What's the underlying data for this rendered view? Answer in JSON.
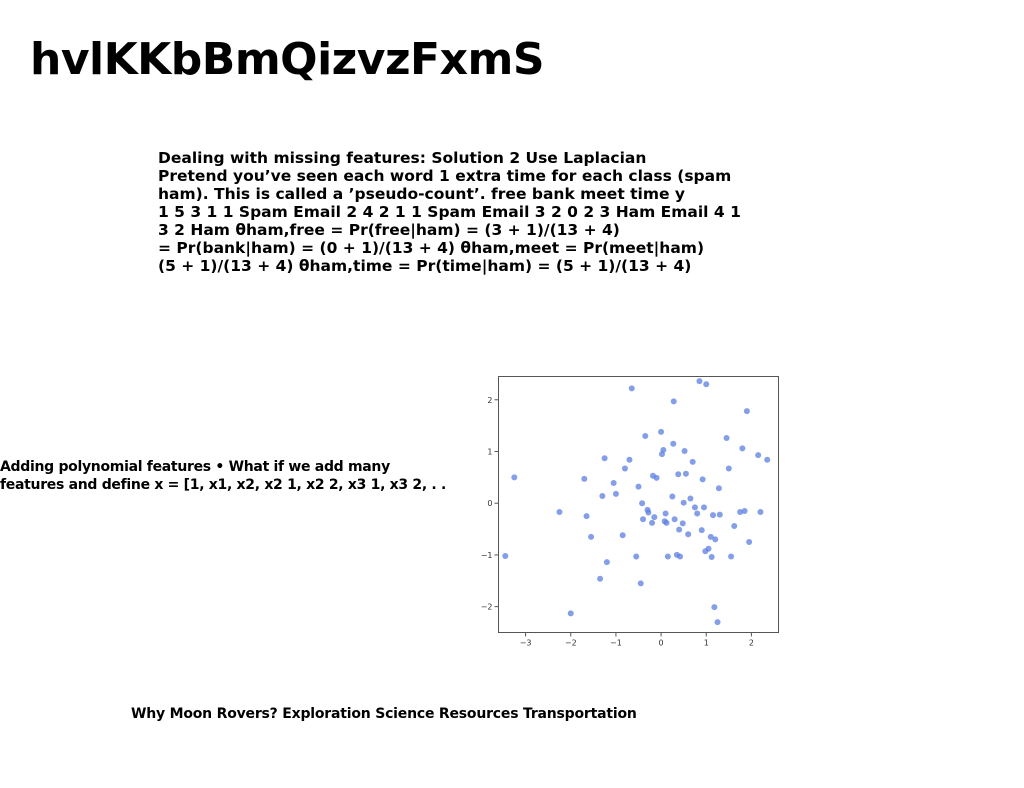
{
  "header": {
    "title": "hvlKKbBmQizvzFxmS"
  },
  "laplacian": {
    "lines": [
      "Dealing with missing features: Solution 2 Use Laplacian",
      "Pretend you’ve seen each word 1 extra time for each class (spam",
      "ham). This is called a ’pseudo-count’. free bank meet time y",
      "1 5 3 1 1 Spam Email 2 4 2 1 1 Spam Email 3 2 0 2 3 Ham Email 4 1",
      "3 2 Ham θham,free = Pr(free|ham) = (3 + 1)/(13 + 4)",
      "= Pr(bank|ham) = (0 + 1)/(13 + 4) θham,meet = Pr(meet|ham)",
      "(5 + 1)/(13 + 4) θham,time = Pr(time|ham) = (5 + 1)/(13 + 4)"
    ]
  },
  "polynomial": {
    "lines": [
      "Adding polynomial features • What if we add many",
      "features and define x = [1, x1, x2, x2 1, x2 2, x3 1, x3 2, . ."
    ]
  },
  "moon": {
    "text": "Why Moon Rovers? Exploration Science Resources Transportation"
  },
  "chart_data": {
    "type": "scatter",
    "title": "",
    "xlabel": "",
    "ylabel": "",
    "xlim": [
      -3.6,
      2.6
    ],
    "ylim": [
      -2.5,
      2.45
    ],
    "xticks": [
      -3,
      -2,
      -1,
      0,
      1,
      2
    ],
    "yticks": [
      -2,
      -1,
      0,
      1,
      2
    ],
    "xtick_labels": [
      "−3",
      "−2",
      "−1",
      "0",
      "1",
      "2"
    ],
    "ytick_labels": [
      "−2",
      "−1",
      "0",
      "1",
      "2"
    ],
    "grid": false,
    "point_color": "#5b7fe0",
    "points": [
      [
        -3.45,
        -1.02
      ],
      [
        -3.25,
        0.5
      ],
      [
        -2.25,
        -0.17
      ],
      [
        -2.0,
        -2.13
      ],
      [
        -1.7,
        0.47
      ],
      [
        -1.65,
        -0.25
      ],
      [
        -1.55,
        -0.65
      ],
      [
        -1.35,
        -1.46
      ],
      [
        -1.3,
        0.14
      ],
      [
        -1.25,
        0.87
      ],
      [
        -1.2,
        -1.14
      ],
      [
        -1.05,
        0.39
      ],
      [
        -1.0,
        0.18
      ],
      [
        -0.85,
        -0.62
      ],
      [
        -0.8,
        0.67
      ],
      [
        -0.7,
        0.84
      ],
      [
        -0.65,
        2.22
      ],
      [
        -0.55,
        -1.03
      ],
      [
        -0.5,
        0.32
      ],
      [
        -0.45,
        -1.55
      ],
      [
        -0.42,
        0.0
      ],
      [
        -0.4,
        -0.31
      ],
      [
        -0.35,
        1.3
      ],
      [
        -0.3,
        -0.13
      ],
      [
        -0.28,
        -0.18
      ],
      [
        -0.2,
        -0.38
      ],
      [
        -0.18,
        0.53
      ],
      [
        -0.15,
        -0.27
      ],
      [
        -0.1,
        0.49
      ],
      [
        0.0,
        1.38
      ],
      [
        0.02,
        0.95
      ],
      [
        0.05,
        1.03
      ],
      [
        0.08,
        -0.35
      ],
      [
        0.1,
        -0.2
      ],
      [
        0.12,
        -0.38
      ],
      [
        0.15,
        -1.03
      ],
      [
        0.25,
        0.13
      ],
      [
        0.27,
        1.15
      ],
      [
        0.28,
        1.97
      ],
      [
        0.3,
        -0.31
      ],
      [
        0.35,
        -1.0
      ],
      [
        0.38,
        0.56
      ],
      [
        0.4,
        -0.51
      ],
      [
        0.42,
        -1.03
      ],
      [
        0.48,
        -0.39
      ],
      [
        0.5,
        0.01
      ],
      [
        0.52,
        1.01
      ],
      [
        0.55,
        0.57
      ],
      [
        0.6,
        -0.6
      ],
      [
        0.65,
        0.09
      ],
      [
        0.7,
        0.8
      ],
      [
        0.75,
        -0.08
      ],
      [
        0.8,
        -0.2
      ],
      [
        0.85,
        2.36
      ],
      [
        0.9,
        -0.52
      ],
      [
        0.92,
        0.46
      ],
      [
        0.95,
        -0.08
      ],
      [
        0.98,
        -0.93
      ],
      [
        1.0,
        2.3
      ],
      [
        1.05,
        -0.88
      ],
      [
        1.1,
        -0.65
      ],
      [
        1.12,
        -1.04
      ],
      [
        1.15,
        -0.23
      ],
      [
        1.18,
        -2.01
      ],
      [
        1.2,
        -0.7
      ],
      [
        1.25,
        -2.3
      ],
      [
        1.28,
        0.29
      ],
      [
        1.3,
        -0.22
      ],
      [
        1.45,
        1.26
      ],
      [
        1.5,
        0.67
      ],
      [
        1.55,
        -1.03
      ],
      [
        1.62,
        -0.44
      ],
      [
        1.75,
        -0.17
      ],
      [
        1.8,
        1.06
      ],
      [
        1.85,
        -0.15
      ],
      [
        1.9,
        1.78
      ],
      [
        1.95,
        -0.75
      ],
      [
        2.15,
        0.93
      ],
      [
        2.2,
        -0.17
      ],
      [
        2.35,
        0.84
      ]
    ]
  }
}
